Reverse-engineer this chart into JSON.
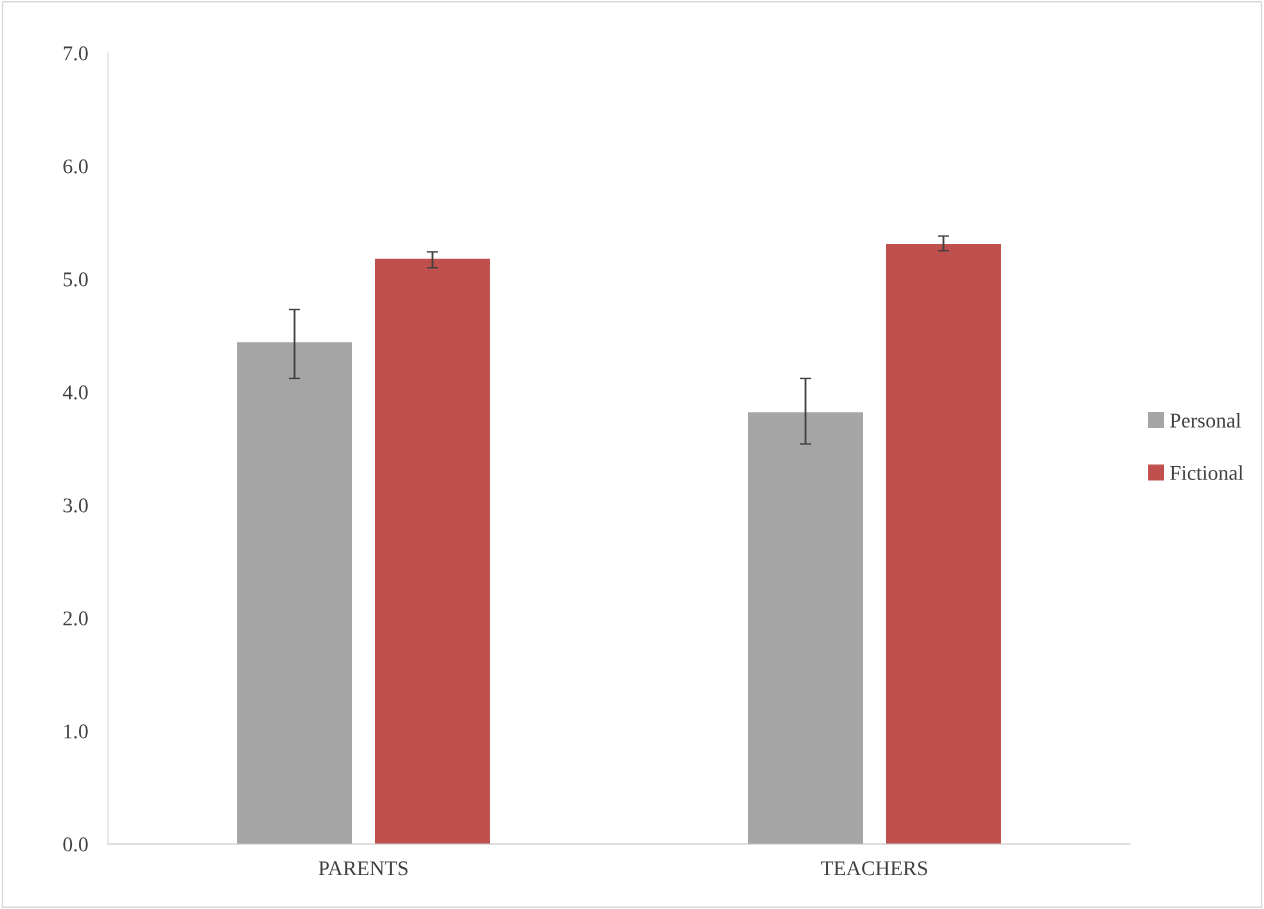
{
  "chart_data": {
    "type": "bar",
    "categories": [
      "PARENTS",
      "TEACHERS"
    ],
    "series": [
      {
        "name": "Personal",
        "color": "#a5a5a5",
        "values": [
          4.44,
          3.82
        ],
        "errors": [
          [
            4.12,
            4.73
          ],
          [
            3.54,
            4.12
          ]
        ]
      },
      {
        "name": "Fictional",
        "color": "#c0504d",
        "values": [
          5.18,
          5.31
        ],
        "errors": [
          [
            5.1,
            5.24
          ],
          [
            5.25,
            5.38
          ]
        ]
      }
    ],
    "ylim": [
      0,
      7
    ],
    "yticks": [
      {
        "value": 0,
        "label": "0.0"
      },
      {
        "value": 1,
        "label": "1.0"
      },
      {
        "value": 2,
        "label": "2.0"
      },
      {
        "value": 3,
        "label": "3.0"
      },
      {
        "value": 4,
        "label": "4.0"
      },
      {
        "value": 5,
        "label": "5.0"
      },
      {
        "value": 6,
        "label": "6.0"
      },
      {
        "value": 7,
        "label": "7.0"
      }
    ],
    "grid": false,
    "legend": "right"
  }
}
